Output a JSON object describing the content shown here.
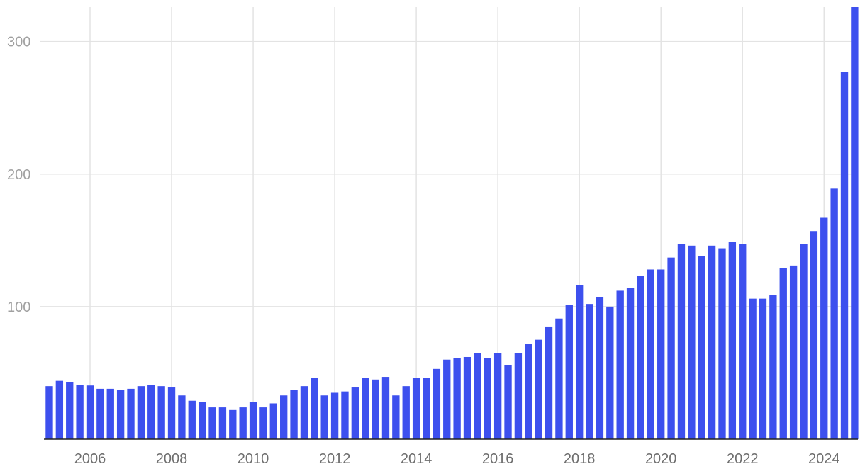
{
  "chart_data": {
    "type": "bar",
    "x": [
      2005,
      2005.25,
      2005.5,
      2005.75,
      2006,
      2006.25,
      2006.5,
      2006.75,
      2007,
      2007.25,
      2007.5,
      2007.75,
      2008,
      2008.25,
      2008.5,
      2008.75,
      2009,
      2009.25,
      2009.5,
      2009.75,
      2010,
      2010.25,
      2010.5,
      2010.75,
      2011,
      2011.25,
      2011.5,
      2011.75,
      2012,
      2012.25,
      2012.5,
      2012.75,
      2013,
      2013.25,
      2013.5,
      2013.75,
      2014,
      2014.25,
      2014.5,
      2014.75,
      2015,
      2015.25,
      2015.5,
      2015.75,
      2016,
      2016.25,
      2016.5,
      2016.75,
      2017,
      2017.25,
      2017.5,
      2017.75,
      2018,
      2018.25,
      2018.5,
      2018.75,
      2019,
      2019.25,
      2019.5,
      2019.75,
      2020,
      2020.25,
      2020.5,
      2020.75,
      2021,
      2021.25,
      2021.5,
      2021.75,
      2022,
      2022.25,
      2022.5,
      2022.75,
      2023,
      2023.25,
      2023.5,
      2023.75,
      2024,
      2024.25,
      2024.5,
      2024.75
    ],
    "values": [
      40,
      44,
      43,
      41,
      40.5,
      38,
      38,
      37,
      38,
      40,
      41,
      40,
      39,
      33,
      29,
      28,
      24,
      24,
      22,
      24,
      28,
      24,
      27,
      33,
      37,
      40,
      46,
      33,
      35,
      36,
      39,
      46,
      45,
      47,
      33,
      40,
      46,
      46,
      53,
      60,
      61,
      62,
      65,
      61,
      65,
      56,
      65,
      72,
      75,
      85,
      91,
      101,
      116,
      102,
      107,
      100,
      112,
      114,
      123,
      128,
      128,
      137,
      147,
      146,
      138,
      146,
      144,
      149,
      147,
      106,
      106,
      109,
      129,
      131,
      147,
      157,
      167,
      189,
      277,
      326
    ],
    "color": "#3d50ee",
    "xlim": [
      2004.87,
      2024.83
    ],
    "xticks": [
      2006,
      2008,
      2010,
      2012,
      2014,
      2016,
      2018,
      2020,
      2022,
      2024
    ],
    "ylim": [
      0,
      326
    ],
    "yticks": [
      100,
      200,
      300
    ],
    "grid": true
  }
}
